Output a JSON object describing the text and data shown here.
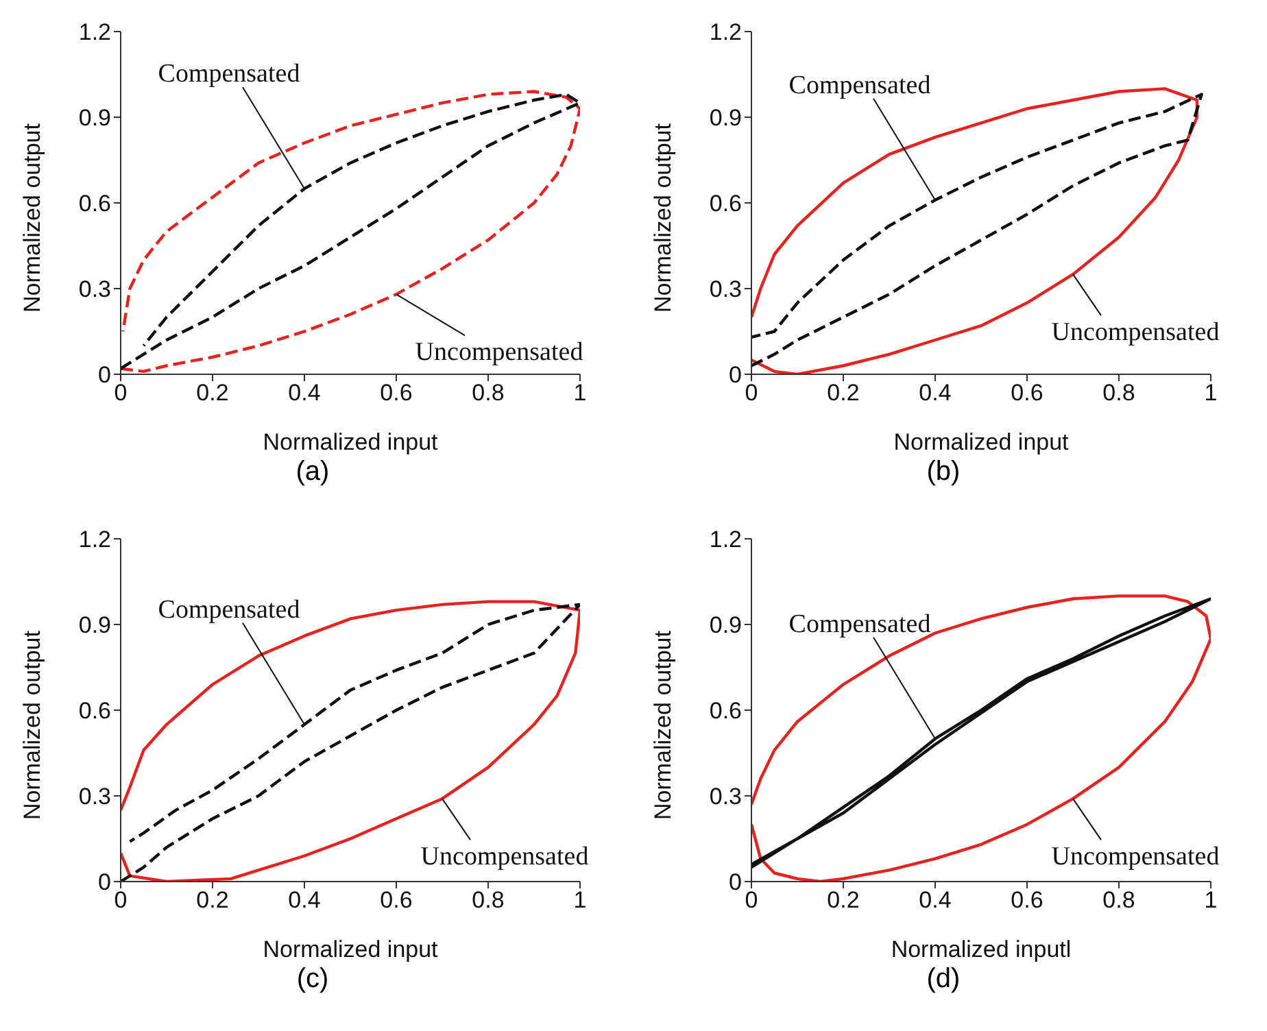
{
  "chart_data": [
    {
      "type": "line",
      "title": "(a)",
      "xlabel": "Normalized input",
      "ylabel": "Normalized output",
      "xlim": [
        0,
        1
      ],
      "ylim": [
        0,
        1.2
      ],
      "xticks": [
        0,
        0.2,
        0.4,
        0.6,
        0.8,
        1
      ],
      "yticks": [
        0,
        0.3,
        0.6,
        0.9,
        1.2
      ],
      "marker": "none",
      "legend": false,
      "grid": false,
      "series": [
        {
          "color": "#e8231f",
          "line_style": "dashed",
          "x": [
            0,
            0.05,
            0.1,
            0.2,
            0.3,
            0.4,
            0.5,
            0.6,
            0.7,
            0.8,
            0.9,
            0.95,
            0.98,
            1,
            0.97,
            0.9,
            0.8,
            0.7,
            0.6,
            0.5,
            0.4,
            0.3,
            0.2,
            0.1,
            0.05,
            0.02,
            0.005
          ],
          "values": [
            0.02,
            0.01,
            0.03,
            0.06,
            0.1,
            0.15,
            0.21,
            0.28,
            0.37,
            0.47,
            0.6,
            0.7,
            0.8,
            0.93,
            0.97,
            0.99,
            0.98,
            0.95,
            0.91,
            0.87,
            0.81,
            0.74,
            0.62,
            0.5,
            0.4,
            0.3,
            0.15
          ]
        },
        {
          "color": "#111111",
          "line_style": "dashed",
          "x": [
            0,
            0.03,
            0.1,
            0.2,
            0.3,
            0.4,
            0.5,
            0.6,
            0.7,
            0.8,
            0.9,
            1,
            0.97,
            0.9,
            0.8,
            0.7,
            0.6,
            0.5,
            0.4,
            0.3,
            0.2,
            0.1,
            0.05
          ],
          "values": [
            0.02,
            0.05,
            0.12,
            0.2,
            0.3,
            0.38,
            0.48,
            0.58,
            0.69,
            0.8,
            0.88,
            0.95,
            0.98,
            0.96,
            0.92,
            0.87,
            0.81,
            0.74,
            0.65,
            0.52,
            0.36,
            0.2,
            0.1
          ]
        }
      ],
      "annotations": [
        {
          "text": "Compensated",
          "x": 0.4,
          "y": 0.65
        },
        {
          "text": "Uncompensated",
          "x": 0.6,
          "y": 0.28
        }
      ]
    },
    {
      "type": "line",
      "title": "(b)",
      "xlabel": "Normalized input",
      "ylabel": "Normalized output",
      "xlim": [
        0,
        1
      ],
      "ylim": [
        0,
        1.2
      ],
      "xticks": [
        0,
        0.2,
        0.4,
        0.6,
        0.8,
        1
      ],
      "yticks": [
        0,
        0.3,
        0.6,
        0.9,
        1.2
      ],
      "marker": "none",
      "legend": false,
      "grid": false,
      "series": [
        {
          "color": "#e8231f",
          "line_style": "solid",
          "x": [
            0,
            0.05,
            0.1,
            0.2,
            0.3,
            0.4,
            0.5,
            0.6,
            0.7,
            0.8,
            0.88,
            0.93,
            0.97,
            0.97,
            0.9,
            0.8,
            0.7,
            0.6,
            0.5,
            0.4,
            0.3,
            0.2,
            0.1,
            0.05,
            0.02,
            0
          ],
          "values": [
            0.05,
            0.01,
            0,
            0.03,
            0.07,
            0.12,
            0.17,
            0.25,
            0.35,
            0.48,
            0.62,
            0.75,
            0.9,
            0.96,
            1,
            0.99,
            0.96,
            0.93,
            0.88,
            0.83,
            0.77,
            0.67,
            0.52,
            0.42,
            0.3,
            0.2
          ]
        },
        {
          "color": "#111111",
          "line_style": "dashed",
          "x": [
            0,
            0.05,
            0.1,
            0.2,
            0.3,
            0.4,
            0.5,
            0.6,
            0.7,
            0.8,
            0.9,
            0.95,
            0.98,
            0.9,
            0.8,
            0.7,
            0.6,
            0.5,
            0.4,
            0.3,
            0.2,
            0.1,
            0.05,
            0
          ],
          "values": [
            0.03,
            0.07,
            0.12,
            0.2,
            0.28,
            0.38,
            0.47,
            0.56,
            0.66,
            0.74,
            0.8,
            0.82,
            0.98,
            0.92,
            0.88,
            0.82,
            0.76,
            0.69,
            0.61,
            0.52,
            0.4,
            0.25,
            0.15,
            0.13
          ]
        }
      ],
      "annotations": [
        {
          "text": "Compensated",
          "x": 0.4,
          "y": 0.61
        },
        {
          "text": "Uncompensated",
          "x": 0.7,
          "y": 0.35
        }
      ]
    },
    {
      "type": "line",
      "title": "(c)",
      "xlabel": "Normalized input",
      "ylabel": "Normalized output",
      "xlim": [
        0,
        1
      ],
      "ylim": [
        0,
        1.2
      ],
      "xticks": [
        0,
        0.2,
        0.4,
        0.6,
        0.8,
        1
      ],
      "yticks": [
        0,
        0.3,
        0.6,
        0.9,
        1.2
      ],
      "marker": "none",
      "legend": false,
      "grid": false,
      "series": [
        {
          "color": "#e8231f",
          "line_style": "solid",
          "x": [
            0,
            0.02,
            0.1,
            0.24,
            0.3,
            0.4,
            0.5,
            0.6,
            0.7,
            0.8,
            0.9,
            0.95,
            0.99,
            1,
            0.9,
            0.8,
            0.7,
            0.6,
            0.5,
            0.4,
            0.3,
            0.2,
            0.1,
            0.05,
            0.02,
            0
          ],
          "values": [
            0.1,
            0.02,
            0,
            0.01,
            0.04,
            0.09,
            0.15,
            0.22,
            0.29,
            0.4,
            0.55,
            0.65,
            0.8,
            0.95,
            0.98,
            0.98,
            0.97,
            0.95,
            0.92,
            0.86,
            0.79,
            0.69,
            0.55,
            0.46,
            0.33,
            0.25
          ]
        },
        {
          "color": "#111111",
          "line_style": "dashed",
          "x": [
            0,
            0.05,
            0.1,
            0.2,
            0.3,
            0.4,
            0.5,
            0.6,
            0.7,
            0.8,
            0.9,
            1,
            0.9,
            0.8,
            0.7,
            0.6,
            0.5,
            0.4,
            0.3,
            0.2,
            0.12,
            0.05,
            0.02
          ],
          "values": [
            0,
            0.05,
            0.12,
            0.22,
            0.3,
            0.42,
            0.51,
            0.6,
            0.68,
            0.74,
            0.8,
            0.97,
            0.95,
            0.9,
            0.8,
            0.74,
            0.67,
            0.55,
            0.43,
            0.32,
            0.25,
            0.17,
            0.14
          ]
        }
      ],
      "annotations": [
        {
          "text": "Compensated",
          "x": 0.4,
          "y": 0.55
        },
        {
          "text": "Uncompensated",
          "x": 0.7,
          "y": 0.29
        }
      ]
    },
    {
      "type": "line",
      "title": "(d)",
      "xlabel": "Normalized inputl",
      "ylabel": "Normalized output",
      "xlim": [
        0,
        1
      ],
      "ylim": [
        0,
        1.2
      ],
      "xticks": [
        0,
        0.2,
        0.4,
        0.6,
        0.8,
        1
      ],
      "yticks": [
        0,
        0.3,
        0.6,
        0.9,
        1.2
      ],
      "marker": "none",
      "legend": false,
      "grid": false,
      "series": [
        {
          "color": "#e8231f",
          "line_style": "solid",
          "x": [
            0,
            0.02,
            0.05,
            0.1,
            0.15,
            0.2,
            0.3,
            0.4,
            0.5,
            0.6,
            0.7,
            0.8,
            0.9,
            0.96,
            1,
            0.99,
            0.95,
            0.9,
            0.8,
            0.7,
            0.6,
            0.5,
            0.4,
            0.3,
            0.2,
            0.1,
            0.05,
            0.02,
            0
          ],
          "values": [
            0.2,
            0.08,
            0.03,
            0.01,
            0,
            0.01,
            0.04,
            0.08,
            0.13,
            0.2,
            0.29,
            0.4,
            0.56,
            0.7,
            0.85,
            0.93,
            0.98,
            1,
            1,
            0.99,
            0.96,
            0.92,
            0.87,
            0.79,
            0.69,
            0.56,
            0.46,
            0.36,
            0.27
          ]
        },
        {
          "color": "#111111",
          "line_style": "solid",
          "x": [
            0,
            0.1,
            0.2,
            0.3,
            0.4,
            0.5,
            0.6,
            0.7,
            0.8,
            0.9,
            1,
            0.9,
            0.8,
            0.6,
            0.4,
            0.2,
            0
          ],
          "values": [
            0.05,
            0.15,
            0.26,
            0.37,
            0.5,
            0.6,
            0.71,
            0.78,
            0.86,
            0.93,
            0.99,
            0.91,
            0.84,
            0.7,
            0.48,
            0.24,
            0.06
          ]
        }
      ],
      "annotations": [
        {
          "text": "Compensated",
          "x": 0.4,
          "y": 0.5
        },
        {
          "text": "Uncompensated",
          "x": 0.7,
          "y": 0.29
        }
      ]
    }
  ]
}
